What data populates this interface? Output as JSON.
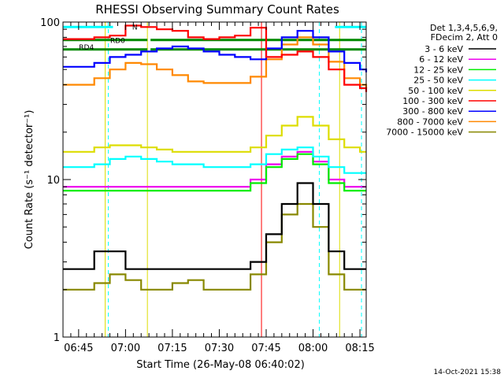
{
  "chart_data": {
    "type": "line",
    "title": "RHESSI Observing Summary Count Rates",
    "xlabel": "Start Time (26-May-08 06:40:02)",
    "ylabel": "Count Rate (s⁻¹ detector⁻¹)",
    "yscale": "log",
    "ylim": [
      1,
      100
    ],
    "yticks": [
      "1",
      "10",
      "100"
    ],
    "xlim_minutes": [
      0,
      97
    ],
    "xtick_labels": [
      "06:45",
      "07:00",
      "07:15",
      "07:30",
      "07:45",
      "08:00",
      "08:15"
    ],
    "xtick_minutes": [
      5,
      20,
      35,
      50,
      65,
      80,
      95
    ],
    "legend_header": [
      "Det 1,3,4,5,6,9,",
      "FDecim 2, Att 0"
    ],
    "legend_position": "right",
    "series": [
      {
        "name": "3 - 6 keV",
        "color": "#000000",
        "x": [
          0,
          5,
          10,
          15,
          20,
          25,
          30,
          35,
          40,
          45,
          50,
          55,
          60,
          65,
          70,
          75,
          80,
          85,
          90,
          95,
          97
        ],
        "y": [
          2.7,
          2.7,
          3.5,
          3.5,
          2.7,
          2.7,
          2.7,
          2.7,
          2.7,
          2.7,
          2.7,
          2.7,
          3.0,
          4.5,
          7.0,
          9.5,
          7.0,
          3.5,
          2.7,
          2.7,
          2.7
        ]
      },
      {
        "name": "6 - 12 keV",
        "color": "#ee00ee",
        "x": [
          0,
          5,
          10,
          15,
          20,
          25,
          30,
          35,
          40,
          45,
          50,
          55,
          60,
          65,
          70,
          75,
          80,
          85,
          90,
          95,
          97
        ],
        "y": [
          9.0,
          9.0,
          9.0,
          9.0,
          9.0,
          9.0,
          9.0,
          9.0,
          9.0,
          9.0,
          9.0,
          9.0,
          10.0,
          12.5,
          14.0,
          15.0,
          13.0,
          10.0,
          9.0,
          9.0,
          9.0
        ]
      },
      {
        "name": "12 - 25 keV",
        "color": "#00ee00",
        "x": [
          0,
          5,
          10,
          15,
          20,
          25,
          30,
          35,
          40,
          45,
          50,
          55,
          60,
          65,
          70,
          75,
          80,
          85,
          90,
          95,
          97
        ],
        "y": [
          8.5,
          8.5,
          8.5,
          8.5,
          8.5,
          8.5,
          8.5,
          8.5,
          8.5,
          8.5,
          8.5,
          8.5,
          9.5,
          12.0,
          13.5,
          14.5,
          12.5,
          9.5,
          8.5,
          8.5,
          8.5
        ]
      },
      {
        "name": "25 - 50 keV",
        "color": "#00ffff",
        "x": [
          0,
          5,
          10,
          15,
          20,
          25,
          30,
          35,
          40,
          45,
          50,
          55,
          60,
          65,
          70,
          75,
          80,
          85,
          90,
          95,
          97
        ],
        "y": [
          12.0,
          12.0,
          12.5,
          13.5,
          14.0,
          13.5,
          13.0,
          12.5,
          12.5,
          12.0,
          12.0,
          12.0,
          12.5,
          14.5,
          15.5,
          16.0,
          14.0,
          12.0,
          11.0,
          11.0,
          11.0
        ]
      },
      {
        "name": "50 - 100 keV",
        "color": "#dddd00",
        "x": [
          0,
          5,
          10,
          15,
          20,
          25,
          30,
          35,
          40,
          45,
          50,
          55,
          60,
          65,
          70,
          75,
          80,
          85,
          90,
          95,
          97
        ],
        "y": [
          15.0,
          15.0,
          16.0,
          16.5,
          16.5,
          16.0,
          15.5,
          15.0,
          15.0,
          15.0,
          15.0,
          15.0,
          16.0,
          19.0,
          22.0,
          25.0,
          22.0,
          18.0,
          16.0,
          15.0,
          15.0
        ]
      },
      {
        "name": "100 - 300 keV",
        "color": "#ff0000",
        "x": [
          0,
          5,
          10,
          15,
          20,
          25,
          30,
          35,
          40,
          45,
          50,
          55,
          60,
          65,
          70,
          75,
          80,
          85,
          90,
          95,
          97
        ],
        "y": [
          78,
          78,
          80,
          82,
          95,
          93,
          90,
          88,
          80,
          78,
          80,
          82,
          92,
          60,
          62,
          65,
          60,
          50,
          40,
          38,
          36
        ]
      },
      {
        "name": "300 - 800 keV",
        "color": "#0000ff",
        "x": [
          0,
          5,
          10,
          15,
          20,
          25,
          30,
          35,
          40,
          45,
          50,
          55,
          60,
          65,
          70,
          75,
          80,
          85,
          90,
          95,
          97
        ],
        "y": [
          52,
          52,
          55,
          60,
          62,
          65,
          68,
          70,
          68,
          65,
          62,
          60,
          58,
          68,
          80,
          88,
          80,
          65,
          55,
          50,
          48
        ]
      },
      {
        "name": "800 - 7000 keV",
        "color": "#ff8800",
        "x": [
          0,
          5,
          10,
          15,
          20,
          25,
          30,
          35,
          40,
          45,
          50,
          55,
          60,
          65,
          70,
          75,
          80,
          85,
          90,
          95,
          97
        ],
        "y": [
          40,
          40,
          44,
          50,
          55,
          54,
          50,
          46,
          42,
          41,
          41,
          41,
          45,
          58,
          72,
          80,
          72,
          56,
          44,
          40,
          38
        ]
      },
      {
        "name": "7000 - 15000 keV",
        "color": "#888800",
        "x": [
          0,
          5,
          10,
          15,
          20,
          25,
          30,
          35,
          40,
          45,
          50,
          55,
          60,
          65,
          70,
          75,
          80,
          85,
          90,
          95,
          97
        ],
        "y": [
          2.0,
          2.0,
          2.2,
          2.5,
          2.3,
          2.0,
          2.0,
          2.2,
          2.3,
          2.0,
          2.0,
          2.0,
          2.5,
          4.0,
          6.0,
          7.0,
          5.0,
          2.5,
          2.0,
          2.0,
          2.0
        ]
      }
    ],
    "annotations": [
      {
        "text": "RD0",
        "x": 17.5,
        "y": 77
      },
      {
        "text": "RD4",
        "x": 7.5,
        "y": 70
      },
      {
        "text": "N",
        "x": 23,
        "y": 94
      }
    ],
    "flag_bars": [
      {
        "label": "N",
        "color": "#00ffff",
        "segments": [
          [
            0,
            16
          ],
          [
            87,
            97
          ]
        ],
        "y": 93
      },
      {
        "label": "RD0",
        "color": "#008800",
        "segments": [
          [
            0,
            27
          ],
          [
            28,
            97
          ]
        ],
        "y": 77
      },
      {
        "label": "RD4",
        "color": "#008800",
        "segments": [
          [
            0,
            27
          ],
          [
            28,
            97
          ]
        ],
        "y": 67
      }
    ],
    "vlines": [
      {
        "x": 14.5,
        "color": "#00ffff",
        "style": "dashed"
      },
      {
        "x": 82,
        "color": "#00ffff",
        "style": "dashed"
      },
      {
        "x": 95.5,
        "color": "#00ffff",
        "style": "dashed"
      },
      {
        "x": 13.5,
        "color": "#dddd00",
        "style": "solid"
      },
      {
        "x": 27.0,
        "color": "#dddd00",
        "style": "solid"
      },
      {
        "x": 63.5,
        "color": "#ff0000",
        "style": "solid"
      },
      {
        "x": 88.5,
        "color": "#dddd00",
        "style": "solid"
      }
    ]
  },
  "footer_date": "14-Oct-2021 15:38"
}
